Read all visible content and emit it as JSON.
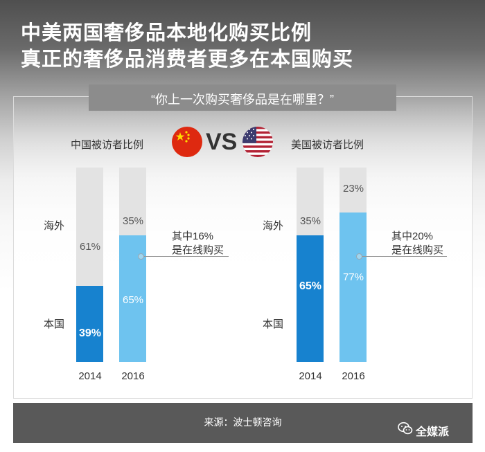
{
  "title_line1": "中美两国奢侈品本地化购买比例",
  "title_line2": "真正的奢侈品消费者更多在本国购买",
  "question": "“你上一次购买奢侈品是在哪里？”",
  "vs_text": "VS",
  "source": "来源：波士顿咨询",
  "brand": "全媒派",
  "colors": {
    "overseas_gray": "#e3e3e3",
    "domestic_2014": "#1782cf",
    "domestic_2016": "#6ec3ef"
  },
  "chart_data": [
    {
      "type": "bar",
      "title": "中国被访者比例",
      "flag": "china-flag-icon",
      "categories": [
        "2014",
        "2016"
      ],
      "series": [
        {
          "name": "本国",
          "values": [
            39,
            65
          ]
        },
        {
          "name": "海外",
          "values": [
            61,
            35
          ]
        }
      ],
      "value_labels": {
        "本国": [
          "39%",
          "65%"
        ],
        "海外": [
          "61%",
          "35%"
        ]
      },
      "annotation": [
        "其中16%",
        "是在线购买"
      ],
      "ylim": [
        0,
        100
      ],
      "stacked": true
    },
    {
      "type": "bar",
      "title": "美国被访者比例",
      "flag": "usa-flag-icon",
      "categories": [
        "2014",
        "2016"
      ],
      "series": [
        {
          "name": "本国",
          "values": [
            65,
            77
          ]
        },
        {
          "name": "海外",
          "values": [
            35,
            23
          ]
        }
      ],
      "value_labels": {
        "本国": [
          "65%",
          "77%"
        ],
        "海外": [
          "35%",
          "23%"
        ]
      },
      "annotation": [
        "其中20%",
        "是在线购买"
      ],
      "ylim": [
        0,
        100
      ],
      "stacked": true
    }
  ]
}
